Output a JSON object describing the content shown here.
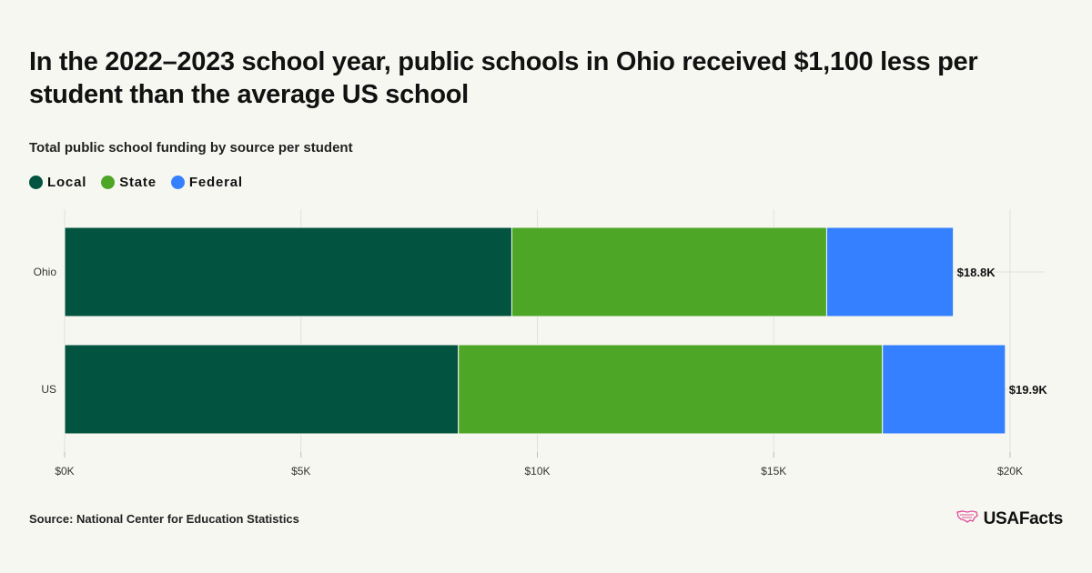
{
  "title": "In the 2022–2023 school year, public schools in Ohio received $1,100 less per student than the average US school",
  "subtitle": "Total public school funding by source per student",
  "source": "Source: National Center for Education Statistics",
  "brand": {
    "name": "USAFacts",
    "icon": "usa-map-icon"
  },
  "colors": {
    "local": "#02533f",
    "state": "#4ea626",
    "federal": "#3580ff",
    "background": "#f7f7f2",
    "brand_icon": "#e0569b"
  },
  "chart_data": {
    "type": "bar",
    "orientation": "horizontal",
    "stacked": true,
    "categories": [
      "Ohio",
      "US"
    ],
    "series": [
      {
        "name": "Local",
        "values": [
          9460,
          8330
        ]
      },
      {
        "name": "State",
        "values": [
          6660,
          8970
        ]
      },
      {
        "name": "Federal",
        "values": [
          2680,
          2600
        ]
      }
    ],
    "totals": [
      18800,
      19900
    ],
    "total_labels": [
      "$18.8K",
      "$19.9K"
    ],
    "title": "In the 2022–2023 school year, public schools in Ohio received $1,100 less per student than the average US school",
    "subtitle": "Total public school funding by source per student",
    "xlabel": "",
    "ylabel": "",
    "xlim": [
      0,
      20000
    ],
    "xticks": [
      0,
      5000,
      10000,
      15000,
      20000
    ],
    "xtick_labels": [
      "$0K",
      "$5K",
      "$10K",
      "$15K",
      "$20K"
    ],
    "grid": true,
    "legend_position": "top-left"
  }
}
